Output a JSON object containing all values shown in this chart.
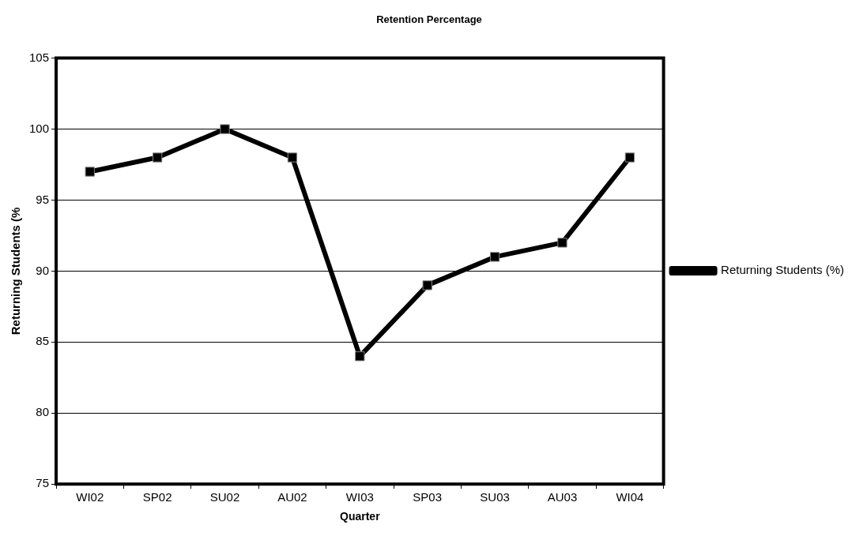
{
  "chart_data": {
    "type": "line",
    "title": "Retention Percentage",
    "xlabel": "Quarter",
    "ylabel": "Returning Students (%",
    "categories": [
      "WI02",
      "SP02",
      "SU02",
      "AU02",
      "WI03",
      "SP03",
      "SU03",
      "AU03",
      "WI04"
    ],
    "series": [
      {
        "name": "Returning Students (%)",
        "color": "#000000",
        "values": [
          97,
          98,
          100,
          98,
          84,
          89,
          91,
          92,
          98
        ]
      }
    ],
    "ylim": [
      75,
      105
    ],
    "yticks": [
      75,
      80,
      85,
      90,
      95,
      100,
      105
    ],
    "grid": "y",
    "legend": "right",
    "marker": "square",
    "line_style": "solid"
  }
}
